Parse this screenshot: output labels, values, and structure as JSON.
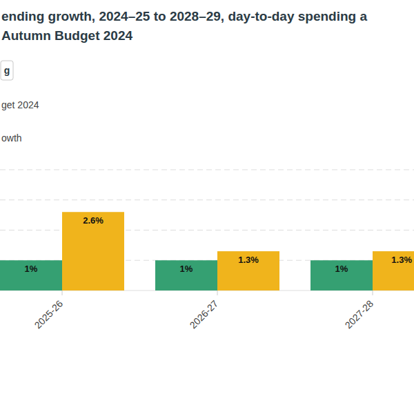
{
  "chart_data": {
    "type": "bar",
    "title": "ending growth, 2024–25 to 2028–29, day-to-day spending a",
    "subtitle": "Autumn Budget 2024",
    "annotations": [
      "g"
    ],
    "categories": [
      "2025-26",
      "2026-27",
      "2027-28"
    ],
    "series": [
      {
        "name": "owth",
        "color": "#35a072",
        "values": [
          1,
          1,
          1
        ],
        "value_labels": [
          "1%",
          "1%",
          "1%"
        ]
      },
      {
        "name": "get 2024",
        "color": "#f0b41c",
        "values": [
          2.6,
          1.3,
          1.3
        ],
        "value_labels": [
          "2.6%",
          "1.3%",
          "1.3%"
        ]
      }
    ],
    "ylim": [
      0,
      4
    ],
    "yticks": [
      0,
      1,
      2,
      3,
      4
    ],
    "grid": true,
    "legend": "top-left",
    "data_labels": true,
    "tick_labels": "x"
  }
}
